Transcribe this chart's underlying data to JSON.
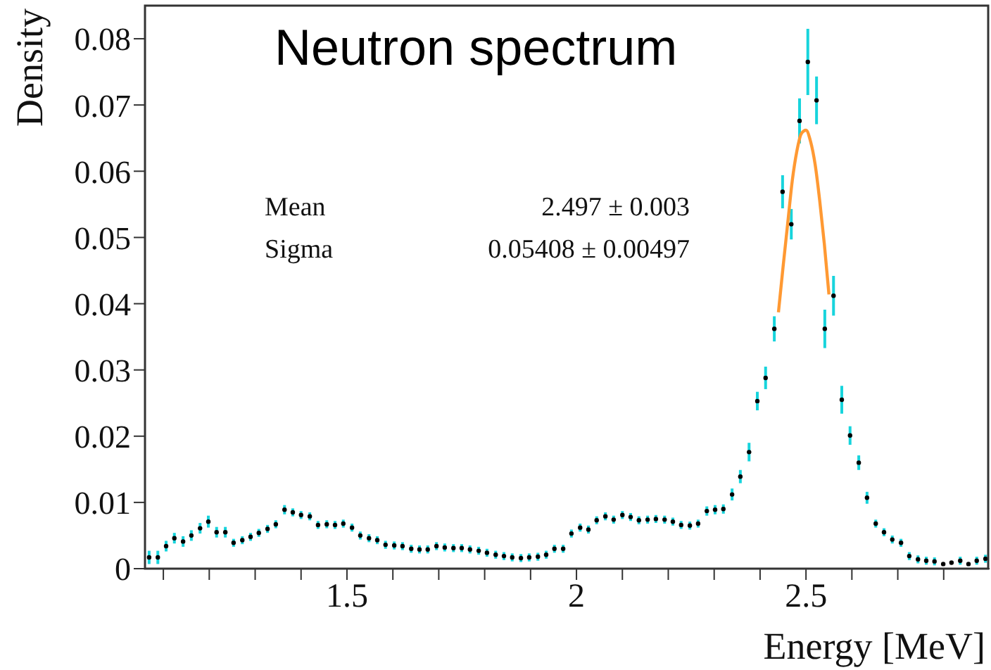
{
  "chart_data": {
    "type": "scatter",
    "title": "Neutron spectrum",
    "xlabel": "Energy [MeV]",
    "ylabel": "Density",
    "annotations": [
      "Mean",
      "2.497 ± 0.003",
      "Sigma",
      "0.05408 ± 0.00497"
    ],
    "xlim": [
      1.06,
      2.9
    ],
    "ylim": [
      0,
      0.085
    ],
    "xticks": [
      {
        "value": 1.1,
        "label": null
      },
      {
        "value": 1.2,
        "label": null
      },
      {
        "value": 1.3,
        "label": null
      },
      {
        "value": 1.4,
        "label": null
      },
      1.5,
      {
        "value": 1.6,
        "label": null
      },
      {
        "value": 1.7,
        "label": null
      },
      {
        "value": 1.8,
        "label": null
      },
      {
        "value": 1.9,
        "label": null
      },
      2,
      {
        "value": 2.1,
        "label": null
      },
      {
        "value": 2.2,
        "label": null
      },
      {
        "value": 2.3,
        "label": null
      },
      {
        "value": 2.4,
        "label": null
      },
      2.5,
      {
        "value": 2.6,
        "label": null
      },
      {
        "value": 2.7,
        "label": null
      },
      {
        "value": 2.8,
        "label": null
      }
    ],
    "yticks": [
      0,
      0.01,
      0.02,
      0.03,
      0.04,
      0.05,
      0.06,
      0.07,
      0.08
    ],
    "series": [
      {
        "marker": "circle",
        "color": "#000000",
        "x": [
          1.069,
          1.088,
          1.106,
          1.124,
          1.143,
          1.161,
          1.18,
          1.198,
          1.216,
          1.235,
          1.253,
          1.272,
          1.29,
          1.308,
          1.327,
          1.345,
          1.364,
          1.382,
          1.4,
          1.419,
          1.437,
          1.456,
          1.474,
          1.492,
          1.511,
          1.529,
          1.548,
          1.566,
          1.584,
          1.603,
          1.621,
          1.64,
          1.658,
          1.676,
          1.695,
          1.713,
          1.732,
          1.75,
          1.768,
          1.787,
          1.805,
          1.824,
          1.842,
          1.86,
          1.879,
          1.897,
          1.916,
          1.934,
          1.952,
          1.971,
          1.989,
          2.008,
          2.026,
          2.044,
          2.063,
          2.081,
          2.1,
          2.118,
          2.136,
          2.155,
          2.173,
          2.192,
          2.21,
          2.228,
          2.247,
          2.265,
          2.284,
          2.302,
          2.32,
          2.339,
          2.357,
          2.376,
          2.394,
          2.412,
          2.431,
          2.449,
          2.468,
          2.486,
          2.504,
          2.523,
          2.541,
          2.56,
          2.578,
          2.596,
          2.615,
          2.633,
          2.652,
          2.67,
          2.688,
          2.707,
          2.725,
          2.744,
          2.762,
          2.78,
          2.799,
          2.817,
          2.836,
          2.854,
          2.872,
          2.891
        ],
        "values": [
          0.0017,
          0.0017,
          0.0034,
          0.0046,
          0.0041,
          0.005,
          0.0061,
          0.0071,
          0.0055,
          0.0055,
          0.0039,
          0.0043,
          0.0048,
          0.0054,
          0.006,
          0.0067,
          0.0089,
          0.0085,
          0.0081,
          0.0079,
          0.0066,
          0.0067,
          0.0066,
          0.0068,
          0.0062,
          0.005,
          0.0046,
          0.0043,
          0.0036,
          0.0035,
          0.0034,
          0.003,
          0.0029,
          0.0029,
          0.0034,
          0.0032,
          0.0031,
          0.0031,
          0.0029,
          0.0027,
          0.0024,
          0.0021,
          0.0019,
          0.0017,
          0.0016,
          0.0017,
          0.0018,
          0.0021,
          0.003,
          0.003,
          0.0053,
          0.0062,
          0.0059,
          0.0073,
          0.0079,
          0.0074,
          0.0081,
          0.0078,
          0.0073,
          0.0074,
          0.0075,
          0.0074,
          0.0071,
          0.0066,
          0.0065,
          0.0068,
          0.0087,
          0.0089,
          0.009,
          0.0112,
          0.0139,
          0.0176,
          0.0253,
          0.0288,
          0.0362,
          0.0569,
          0.052,
          0.0676,
          0.0765,
          0.0707,
          0.0362,
          0.0412,
          0.0255,
          0.0201,
          0.016,
          0.0107,
          0.0068,
          0.0055,
          0.0044,
          0.0039,
          0.0019,
          0.0014,
          0.0012,
          0.0011,
          0.0007,
          0.0009,
          0.0012,
          0.0007,
          0.0012,
          0.0015
        ],
        "errors": [
          0.001,
          0.001,
          0.0008,
          0.0008,
          0.0008,
          0.0008,
          0.0008,
          0.0009,
          0.0008,
          0.0008,
          0.0006,
          0.0006,
          0.0006,
          0.0006,
          0.0006,
          0.0006,
          0.0007,
          0.0006,
          0.0006,
          0.0006,
          0.0006,
          0.0006,
          0.0006,
          0.0006,
          0.0006,
          0.0006,
          0.0006,
          0.0006,
          0.0006,
          0.0006,
          0.0006,
          0.0006,
          0.0006,
          0.0006,
          0.0006,
          0.0006,
          0.0006,
          0.0006,
          0.0006,
          0.0006,
          0.0006,
          0.0006,
          0.0006,
          0.0006,
          0.0006,
          0.0006,
          0.0006,
          0.0006,
          0.0006,
          0.0006,
          0.0006,
          0.0006,
          0.0006,
          0.0006,
          0.0006,
          0.0006,
          0.0006,
          0.0006,
          0.0006,
          0.0006,
          0.0006,
          0.0006,
          0.0006,
          0.0006,
          0.0006,
          0.0006,
          0.0007,
          0.0007,
          0.0007,
          0.0009,
          0.001,
          0.0014,
          0.0014,
          0.0017,
          0.0019,
          0.0025,
          0.0023,
          0.0034,
          0.005,
          0.0036,
          0.0029,
          0.003,
          0.0021,
          0.0014,
          0.0011,
          0.0009,
          0.0006,
          0.0006,
          0.0006,
          0.0006,
          0.0006,
          0.0006,
          0.0006,
          0.0006,
          null,
          null,
          0.0006,
          null,
          0.0006,
          0.0006
        ]
      },
      {
        "type": "line",
        "marker": "none",
        "color": "#ff9933",
        "x": [
          2.44,
          2.45,
          2.46,
          2.47,
          2.48,
          2.49,
          2.5,
          2.51,
          2.52,
          2.53,
          2.54,
          2.55
        ],
        "values": [
          0.0387,
          0.0455,
          0.052,
          0.0585,
          0.063,
          0.0657,
          0.0662,
          0.0645,
          0.061,
          0.0555,
          0.049,
          0.0414
        ]
      }
    ]
  }
}
